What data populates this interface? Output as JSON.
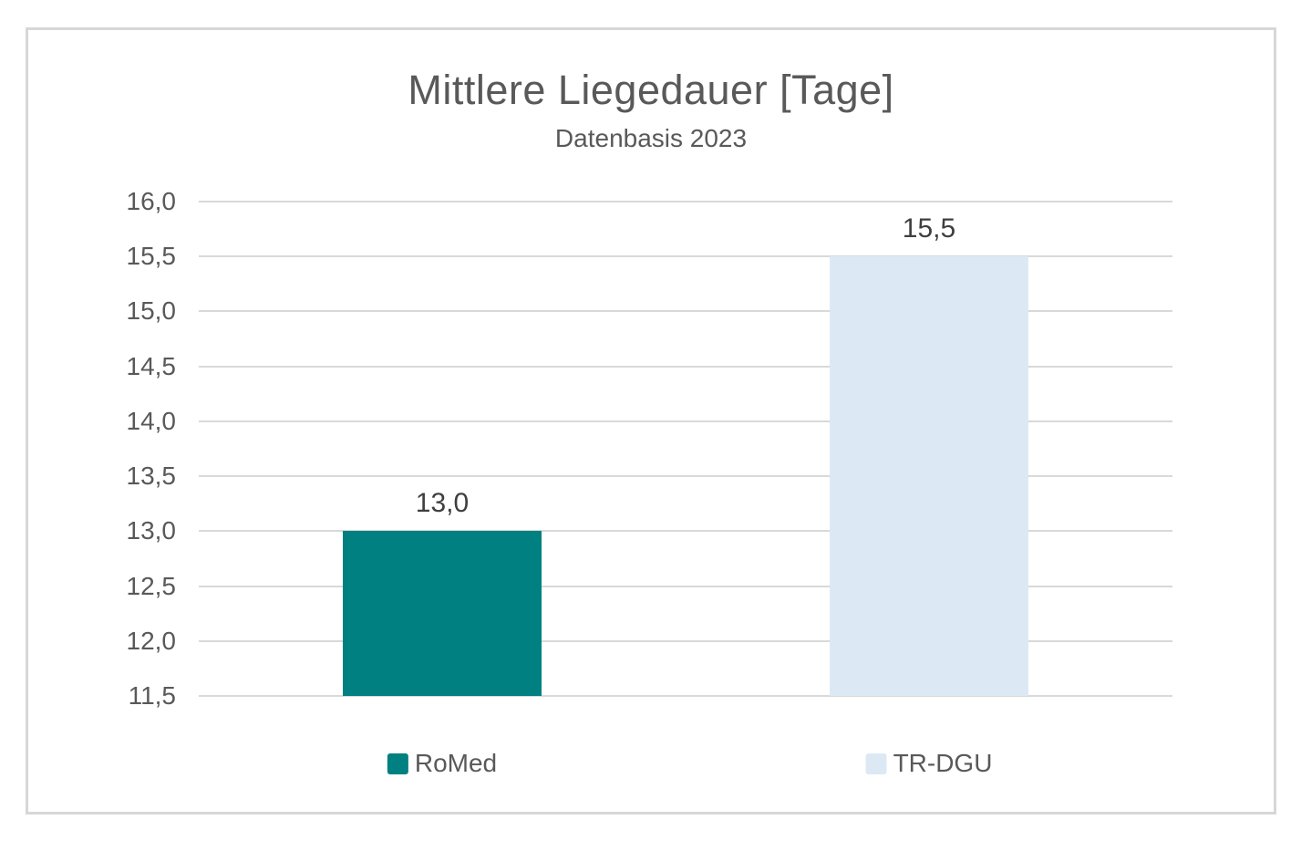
{
  "chart_data": {
    "type": "bar",
    "title": "Mittlere Liegedauer [Tage]",
    "subtitle": "Datenbasis 2023",
    "categories": [
      "RoMed",
      "TR-DGU"
    ],
    "values": [
      13.0,
      15.5
    ],
    "series": [
      {
        "name": "RoMed",
        "value": 13.0,
        "label": "13,0",
        "color": "#008080"
      },
      {
        "name": "TR-DGU",
        "value": 15.5,
        "label": "15,5",
        "color": "#dce9f5"
      }
    ],
    "xlabel": "",
    "ylabel": "",
    "ylim": [
      11.5,
      16.0
    ],
    "ytick_step": 0.5,
    "ytick_labels": [
      "16,0",
      "15,5",
      "15,0",
      "14,5",
      "14,0",
      "13,5",
      "13,0",
      "12,5",
      "12,0",
      "11,5"
    ],
    "grid": true,
    "legend_position": "bottom",
    "legend_entries": [
      "RoMed",
      "TR-DGU"
    ],
    "colors": {
      "gridline": "#d9d9d9",
      "frame_border": "#d7d7d7",
      "axis_text": "#595959",
      "title_text": "#595959",
      "value_label_text": "#3f3f3f",
      "background": "#ffffff"
    }
  }
}
